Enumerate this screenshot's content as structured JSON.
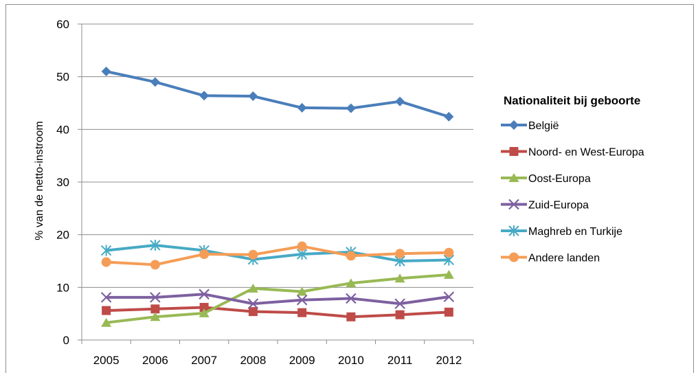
{
  "chart_data": {
    "type": "line",
    "title": "",
    "xlabel": "",
    "ylabel": "% van de netto-instroom",
    "x": [
      "2005",
      "2006",
      "2007",
      "2008",
      "2009",
      "2010",
      "2011",
      "2012"
    ],
    "ylim": [
      0,
      60
    ],
    "yticks": [
      0,
      10,
      20,
      30,
      40,
      50,
      60
    ],
    "grid": "horizontal",
    "legend": {
      "title": "Nationaliteit bij geboorte",
      "position": "right"
    },
    "series": [
      {
        "name": "België",
        "color": "#4a7ebb",
        "marker": "diamond",
        "values": [
          51.0,
          49.0,
          46.4,
          46.3,
          44.1,
          44.0,
          45.3,
          42.4
        ]
      },
      {
        "name": "Noord- en West-Europa",
        "color": "#be4b48",
        "marker": "square",
        "values": [
          5.6,
          5.9,
          6.2,
          5.4,
          5.2,
          4.4,
          4.8,
          5.3
        ]
      },
      {
        "name": "Oost-Europa",
        "color": "#98b954",
        "marker": "triangle",
        "values": [
          3.3,
          4.4,
          5.1,
          9.8,
          9.2,
          10.8,
          11.7,
          12.4
        ]
      },
      {
        "name": "Zuid-Europa",
        "color": "#7d60a0",
        "marker": "x",
        "values": [
          8.1,
          8.1,
          8.7,
          6.9,
          7.6,
          7.9,
          6.9,
          8.2
        ]
      },
      {
        "name": "Maghreb en Turkije",
        "color": "#46aac5",
        "marker": "star",
        "values": [
          17.0,
          18.0,
          17.0,
          15.3,
          16.3,
          16.7,
          15.0,
          15.2
        ]
      },
      {
        "name": "Andere landen",
        "color": "#f59d56",
        "marker": "circle",
        "values": [
          14.8,
          14.3,
          16.3,
          16.2,
          17.8,
          16.0,
          16.4,
          16.6
        ]
      }
    ]
  }
}
